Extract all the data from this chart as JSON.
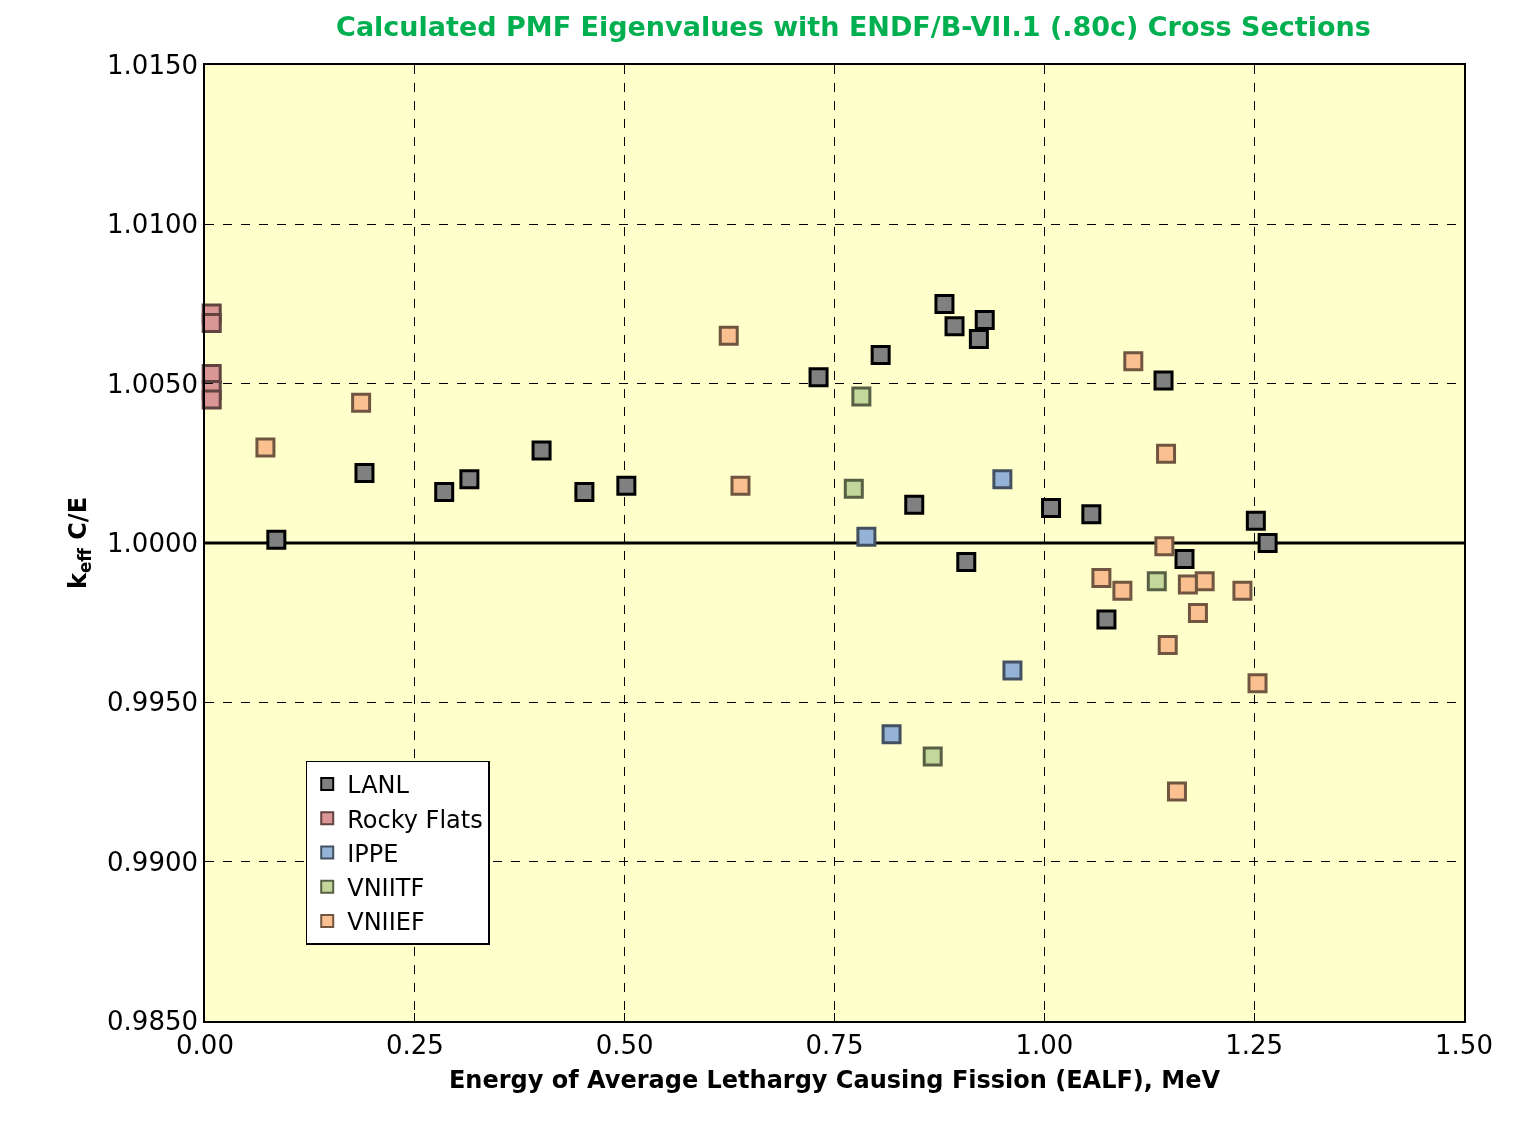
{
  "chart_data": {
    "type": "scatter",
    "title": "Calculated PMF Eigenvalues with ENDF/B-VII.1 (.80c) Cross Sections",
    "xlabel": "Energy of Average Lethargy Causing Fission (EALF), MeV",
    "ylabel": "k$_{eff}$ C/E",
    "series": [
      {
        "name": "LANL",
        "color": "#808080",
        "x": [
          0.085,
          0.19,
          0.285,
          0.315,
          0.401,
          0.452,
          0.502,
          0.731,
          0.805,
          0.881,
          0.893,
          0.922,
          0.929,
          0.845,
          0.907,
          1.008,
          1.056,
          1.074,
          1.142,
          1.167,
          1.252,
          1.266
        ],
        "values": [
          1.0001,
          1.0022,
          1.0016,
          1.002,
          1.0029,
          1.0016,
          1.0018,
          1.0052,
          1.0059,
          1.0075,
          1.0068,
          1.0064,
          1.007,
          1.0012,
          0.9994,
          1.0011,
          1.0009,
          0.9976,
          1.0051,
          0.9995,
          1.0007,
          1.0
        ]
      },
      {
        "name": "Rocky Flats",
        "color": "#d99694",
        "x": [
          0.008,
          0.008,
          0.008,
          0.008,
          0.008
        ],
        "values": [
          1.0072,
          1.0069,
          1.0053,
          1.0048,
          1.0045
        ]
      },
      {
        "name": "IPPE",
        "color": "#95b3d7",
        "x": [
          0.788,
          0.95,
          0.962,
          0.818
        ],
        "values": [
          1.0002,
          1.002,
          0.996,
          0.994
        ]
      },
      {
        "name": "VNIITF",
        "color": "#c3d69b",
        "x": [
          0.782,
          0.773,
          0.867,
          1.134
        ],
        "values": [
          1.0046,
          1.0017,
          0.9933,
          0.9988
        ]
      },
      {
        "name": "VNIIEF",
        "color": "#fac090",
        "x": [
          0.072,
          0.186,
          0.624,
          0.638,
          1.106,
          1.145,
          1.143,
          1.068,
          1.093,
          1.191,
          1.171,
          1.183,
          1.236,
          1.147,
          1.254,
          1.158
        ],
        "values": [
          1.003,
          1.0044,
          1.0065,
          1.0018,
          1.0057,
          1.0028,
          0.9999,
          0.9989,
          0.9985,
          0.9988,
          0.9987,
          0.9978,
          0.9985,
          0.9968,
          0.9956,
          0.9922
        ]
      }
    ],
    "xlim": [
      0,
      1.5
    ],
    "xticks": [
      {
        "value": 0,
        "label": "0.00"
      },
      {
        "value": 0.25,
        "label": "0.25"
      },
      {
        "value": 0.5,
        "label": "0.50"
      },
      {
        "value": 0.75,
        "label": "0.75"
      },
      {
        "value": 1,
        "label": "1.00"
      },
      {
        "value": 1.25,
        "label": "1.25"
      },
      {
        "value": 1.5,
        "label": "1.50"
      }
    ],
    "ylim": [
      0.985,
      1.015
    ],
    "yticks": [
      {
        "value": 0.985,
        "label": "0.9850"
      },
      {
        "value": 0.99,
        "label": "0.9900"
      },
      {
        "value": 0.995,
        "label": "0.9950"
      },
      {
        "value": 1.0,
        "label": "1.0000"
      },
      {
        "value": 1.005,
        "label": "1.0050"
      },
      {
        "value": 1.01,
        "label": "1.0100"
      },
      {
        "value": 1.015,
        "label": "1.0150"
      }
    ],
    "ref_lines": [
      {
        "axis": "y",
        "value": 1.0,
        "color": "#000000",
        "line_style": "solid"
      }
    ],
    "grid": true,
    "legend": "bottom left",
    "marker": "square"
  }
}
